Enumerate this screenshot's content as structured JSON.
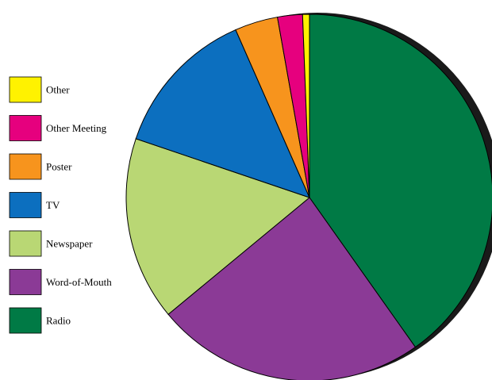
{
  "chart_data": {
    "type": "pie",
    "start_angle_deg": 0,
    "direction": "clockwise",
    "legend_position": "left",
    "slices": [
      {
        "label": "Radio",
        "value": 40.2,
        "color": "#007A45"
      },
      {
        "label": "Word-of-Mouth",
        "value": 23.8,
        "color": "#8B3A96"
      },
      {
        "label": "Newspaper",
        "value": 16.2,
        "color": "#B9D774"
      },
      {
        "label": "TV",
        "value": 13.2,
        "color": "#0C6FBF"
      },
      {
        "label": "Poster",
        "value": 3.8,
        "color": "#F7941D"
      },
      {
        "label": "Other Meeting",
        "value": 2.2,
        "color": "#E6007E"
      },
      {
        "label": "Other",
        "value": 0.6,
        "color": "#FFF200"
      }
    ],
    "legend_order": [
      "Other",
      "Other Meeting",
      "Poster",
      "TV",
      "Newspaper",
      "Word-of-Mouth",
      "Radio"
    ],
    "shadow_color": "#1a1a1a"
  }
}
